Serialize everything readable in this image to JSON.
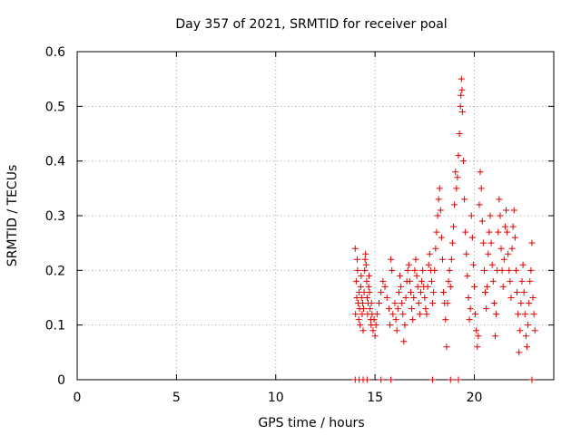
{
  "chart_data": {
    "type": "scatter",
    "title": "Day 357 of 2021, SRMTID for receiver poal",
    "xlabel": "GPS time / hours",
    "ylabel": "SRMTID / TECUs",
    "xlim": [
      0,
      24
    ],
    "ylim": [
      0,
      0.6
    ],
    "x_ticks": [
      0,
      5,
      10,
      15,
      20
    ],
    "x_tick_labels": [
      "0",
      "5",
      "10",
      "15",
      "20"
    ],
    "y_ticks": [
      0,
      0.1,
      0.2,
      0.3,
      0.4,
      0.5,
      0.6
    ],
    "y_tick_labels": [
      "0",
      "0.1",
      "0.2",
      "0.3",
      "0.4",
      "0.5",
      "0.6"
    ],
    "grid": true,
    "marker": "+",
    "color": "#e00000",
    "series": [
      {
        "name": "SRMTID",
        "points": [
          [
            14.0,
            0.24
          ],
          [
            14.02,
            0.12
          ],
          [
            14.05,
            0.18
          ],
          [
            14.08,
            0.15
          ],
          [
            14.1,
            0.22
          ],
          [
            14.12,
            0.2
          ],
          [
            14.15,
            0.14
          ],
          [
            14.18,
            0.11
          ],
          [
            14.2,
            0.16
          ],
          [
            14.22,
            0.13
          ],
          [
            14.25,
            0.1
          ],
          [
            14.28,
            0.17
          ],
          [
            14.3,
            0.19
          ],
          [
            14.32,
            0.15
          ],
          [
            14.35,
            0.12
          ],
          [
            14.38,
            0.14
          ],
          [
            14.4,
            0.09
          ],
          [
            14.42,
            0.13
          ],
          [
            14.45,
            0.16
          ],
          [
            14.48,
            0.2
          ],
          [
            14.5,
            0.22
          ],
          [
            14.52,
            0.23
          ],
          [
            14.55,
            0.21
          ],
          [
            14.58,
            0.18
          ],
          [
            14.6,
            0.15
          ],
          [
            14.62,
            0.12
          ],
          [
            14.65,
            0.14
          ],
          [
            14.68,
            0.17
          ],
          [
            14.7,
            0.19
          ],
          [
            14.72,
            0.16
          ],
          [
            14.75,
            0.13
          ],
          [
            14.78,
            0.11
          ],
          [
            14.8,
            0.1
          ],
          [
            14.82,
            0.14
          ],
          [
            14.85,
            0.12
          ],
          [
            14.9,
            0.09
          ],
          [
            14.95,
            0.11
          ],
          [
            15.0,
            0.08
          ],
          [
            15.05,
            0.1
          ],
          [
            15.1,
            0.12
          ],
          [
            15.2,
            0.14
          ],
          [
            15.3,
            0.16
          ],
          [
            15.4,
            0.18
          ],
          [
            15.5,
            0.17
          ],
          [
            15.6,
            0.15
          ],
          [
            15.7,
            0.13
          ],
          [
            15.75,
            0.1
          ],
          [
            15.8,
            0.22
          ],
          [
            15.85,
            0.2
          ],
          [
            15.9,
            0.12
          ],
          [
            16.0,
            0.14
          ],
          [
            16.05,
            0.11
          ],
          [
            16.1,
            0.09
          ],
          [
            16.15,
            0.13
          ],
          [
            16.2,
            0.16
          ],
          [
            16.25,
            0.19
          ],
          [
            16.3,
            0.17
          ],
          [
            16.35,
            0.14
          ],
          [
            16.4,
            0.12
          ],
          [
            16.45,
            0.07
          ],
          [
            16.5,
            0.1
          ],
          [
            16.55,
            0.15
          ],
          [
            16.6,
            0.18
          ],
          [
            16.65,
            0.2
          ],
          [
            16.7,
            0.21
          ],
          [
            16.75,
            0.18
          ],
          [
            16.8,
            0.16
          ],
          [
            16.85,
            0.13
          ],
          [
            16.9,
            0.11
          ],
          [
            16.95,
            0.15
          ],
          [
            17.0,
            0.2
          ],
          [
            17.05,
            0.22
          ],
          [
            17.1,
            0.19
          ],
          [
            17.15,
            0.17
          ],
          [
            17.2,
            0.14
          ],
          [
            17.25,
            0.12
          ],
          [
            17.3,
            0.16
          ],
          [
            17.35,
            0.18
          ],
          [
            17.4,
            0.2
          ],
          [
            17.45,
            0.17
          ],
          [
            17.5,
            0.15
          ],
          [
            17.55,
            0.13
          ],
          [
            17.6,
            0.12
          ],
          [
            17.65,
            0.17
          ],
          [
            17.7,
            0.21
          ],
          [
            17.75,
            0.23
          ],
          [
            17.8,
            0.2
          ],
          [
            17.85,
            0.18
          ],
          [
            17.9,
            0.14
          ],
          [
            17.95,
            0.16
          ],
          [
            18.0,
            0.2
          ],
          [
            18.05,
            0.24
          ],
          [
            18.1,
            0.27
          ],
          [
            18.15,
            0.3
          ],
          [
            18.2,
            0.33
          ],
          [
            18.25,
            0.35
          ],
          [
            18.3,
            0.31
          ],
          [
            18.35,
            0.26
          ],
          [
            18.4,
            0.22
          ],
          [
            18.45,
            0.16
          ],
          [
            18.5,
            0.14
          ],
          [
            18.55,
            0.11
          ],
          [
            18.6,
            0.06
          ],
          [
            18.65,
            0.14
          ],
          [
            18.7,
            0.18
          ],
          [
            18.75,
            0.2
          ],
          [
            18.8,
            0.17
          ],
          [
            18.85,
            0.22
          ],
          [
            18.9,
            0.25
          ],
          [
            18.95,
            0.28
          ],
          [
            19.0,
            0.32
          ],
          [
            19.05,
            0.38
          ],
          [
            19.1,
            0.35
          ],
          [
            19.15,
            0.37
          ],
          [
            19.2,
            0.41
          ],
          [
            19.25,
            0.45
          ],
          [
            19.3,
            0.5
          ],
          [
            19.32,
            0.52
          ],
          [
            19.35,
            0.55
          ],
          [
            19.38,
            0.53
          ],
          [
            19.4,
            0.49
          ],
          [
            19.45,
            0.4
          ],
          [
            19.5,
            0.33
          ],
          [
            19.55,
            0.27
          ],
          [
            19.6,
            0.23
          ],
          [
            19.65,
            0.19
          ],
          [
            19.7,
            0.15
          ],
          [
            19.75,
            0.11
          ],
          [
            19.8,
            0.13
          ],
          [
            19.85,
            0.3
          ],
          [
            19.9,
            0.26
          ],
          [
            19.95,
            0.21
          ],
          [
            20.0,
            0.17
          ],
          [
            20.05,
            0.12
          ],
          [
            20.1,
            0.09
          ],
          [
            20.15,
            0.06
          ],
          [
            20.2,
            0.08
          ],
          [
            20.25,
            0.32
          ],
          [
            20.3,
            0.38
          ],
          [
            20.35,
            0.35
          ],
          [
            20.4,
            0.29
          ],
          [
            20.45,
            0.25
          ],
          [
            20.5,
            0.2
          ],
          [
            20.55,
            0.16
          ],
          [
            20.6,
            0.13
          ],
          [
            20.65,
            0.17
          ],
          [
            20.7,
            0.23
          ],
          [
            20.75,
            0.27
          ],
          [
            20.8,
            0.3
          ],
          [
            20.85,
            0.25
          ],
          [
            20.9,
            0.21
          ],
          [
            20.95,
            0.18
          ],
          [
            21.0,
            0.14
          ],
          [
            21.05,
            0.08
          ],
          [
            21.1,
            0.12
          ],
          [
            21.15,
            0.2
          ],
          [
            21.2,
            0.27
          ],
          [
            21.25,
            0.33
          ],
          [
            21.3,
            0.3
          ],
          [
            21.35,
            0.24
          ],
          [
            21.4,
            0.2
          ],
          [
            21.45,
            0.17
          ],
          [
            21.5,
            0.22
          ],
          [
            21.55,
            0.28
          ],
          [
            21.6,
            0.31
          ],
          [
            21.65,
            0.27
          ],
          [
            21.7,
            0.23
          ],
          [
            21.75,
            0.2
          ],
          [
            21.8,
            0.18
          ],
          [
            21.85,
            0.15
          ],
          [
            21.9,
            0.24
          ],
          [
            21.95,
            0.28
          ],
          [
            22.0,
            0.31
          ],
          [
            22.05,
            0.26
          ],
          [
            22.1,
            0.2
          ],
          [
            22.15,
            0.16
          ],
          [
            22.2,
            0.12
          ],
          [
            22.25,
            0.05
          ],
          [
            22.3,
            0.09
          ],
          [
            22.35,
            0.14
          ],
          [
            22.4,
            0.18
          ],
          [
            22.45,
            0.21
          ],
          [
            22.5,
            0.16
          ],
          [
            22.55,
            0.12
          ],
          [
            22.6,
            0.08
          ],
          [
            22.65,
            0.06
          ],
          [
            22.7,
            0.1
          ],
          [
            22.75,
            0.14
          ],
          [
            22.8,
            0.18
          ],
          [
            22.85,
            0.2
          ],
          [
            22.9,
            0.25
          ],
          [
            22.95,
            0.15
          ],
          [
            23.0,
            0.12
          ],
          [
            23.05,
            0.09
          ],
          [
            14.0,
            0.0
          ],
          [
            14.2,
            0.0
          ],
          [
            14.4,
            0.0
          ],
          [
            14.6,
            0.0
          ],
          [
            15.3,
            0.0
          ],
          [
            15.8,
            0.0
          ],
          [
            17.9,
            0.0
          ],
          [
            18.8,
            0.0
          ],
          [
            19.2,
            0.0
          ],
          [
            22.9,
            0.0
          ]
        ]
      }
    ]
  }
}
